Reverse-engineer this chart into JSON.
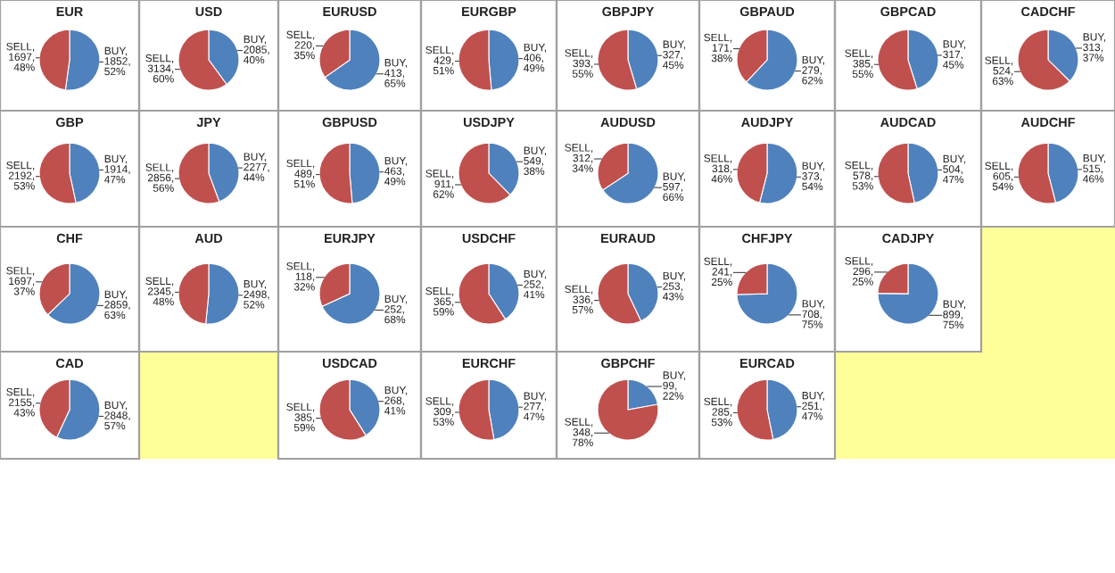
{
  "chart_data": [
    {
      "type": "pie",
      "title": "EUR",
      "values": [
        1852,
        1697
      ],
      "colors": [
        "#4f81bd",
        "#c0504d"
      ],
      "value_labels": [
        "BUY,\n1852,\n52%",
        "SELL,\n1697,\n48%"
      ]
    },
    {
      "type": "pie",
      "title": "USD",
      "values": [
        2085,
        3134
      ],
      "colors": [
        "#4f81bd",
        "#c0504d"
      ],
      "value_labels": [
        "BUY,\n2085,\n40%",
        "SELL,\n3134,\n60%"
      ]
    },
    {
      "type": "pie",
      "title": "EURUSD",
      "values": [
        413,
        220
      ],
      "colors": [
        "#4f81bd",
        "#c0504d"
      ],
      "value_labels": [
        "BUY,\n413,\n65%",
        "SELL,\n220,\n35%"
      ]
    },
    {
      "type": "pie",
      "title": "EURGBP",
      "values": [
        406,
        429
      ],
      "colors": [
        "#4f81bd",
        "#c0504d"
      ],
      "value_labels": [
        "BUY,\n406,\n49%",
        "SELL,\n429,\n51%"
      ]
    },
    {
      "type": "pie",
      "title": "GBPJPY",
      "values": [
        327,
        393
      ],
      "colors": [
        "#4f81bd",
        "#c0504d"
      ],
      "value_labels": [
        "BUY,\n327,\n45%",
        "SELL,\n393,\n55%"
      ]
    },
    {
      "type": "pie",
      "title": "GBPAUD",
      "values": [
        279,
        171
      ],
      "colors": [
        "#4f81bd",
        "#c0504d"
      ],
      "value_labels": [
        "BUY,\n279,\n62%",
        "SELL,\n171,\n38%"
      ]
    },
    {
      "type": "pie",
      "title": "GBPCAD",
      "values": [
        317,
        385
      ],
      "colors": [
        "#4f81bd",
        "#c0504d"
      ],
      "value_labels": [
        "BUY,\n317,\n45%",
        "SELL,\n385,\n55%"
      ]
    },
    {
      "type": "pie",
      "title": "CADCHF",
      "values": [
        313,
        524
      ],
      "colors": [
        "#4f81bd",
        "#c0504d"
      ],
      "value_labels": [
        "BUY,\n313,\n37%",
        "SELL,\n524,\n63%"
      ]
    },
    {
      "type": "pie",
      "title": "GBP",
      "values": [
        1914,
        2192
      ],
      "colors": [
        "#4f81bd",
        "#c0504d"
      ],
      "value_labels": [
        "BUY,\n1914,\n47%",
        "SELL,\n2192,\n53%"
      ]
    },
    {
      "type": "pie",
      "title": "JPY",
      "values": [
        2277,
        2856
      ],
      "colors": [
        "#4f81bd",
        "#c0504d"
      ],
      "value_labels": [
        "BUY,\n2277,\n44%",
        "SELL,\n2856,\n56%"
      ]
    },
    {
      "type": "pie",
      "title": "GBPUSD",
      "values": [
        463,
        489
      ],
      "colors": [
        "#4f81bd",
        "#c0504d"
      ],
      "value_labels": [
        "BUY,\n463,\n49%",
        "SELL,\n489,\n51%"
      ]
    },
    {
      "type": "pie",
      "title": "USDJPY",
      "values": [
        549,
        911
      ],
      "colors": [
        "#4f81bd",
        "#c0504d"
      ],
      "value_labels": [
        "BUY,\n549,\n38%",
        "SELL,\n911,\n62%"
      ]
    },
    {
      "type": "pie",
      "title": "AUDUSD",
      "values": [
        597,
        312
      ],
      "colors": [
        "#4f81bd",
        "#c0504d"
      ],
      "value_labels": [
        "BUY,\n597,\n66%",
        "SELL,\n312,\n34%"
      ]
    },
    {
      "type": "pie",
      "title": "AUDJPY",
      "values": [
        373,
        318
      ],
      "colors": [
        "#4f81bd",
        "#c0504d"
      ],
      "value_labels": [
        "BUY,\n373,\n54%",
        "SELL,\n318,\n46%"
      ]
    },
    {
      "type": "pie",
      "title": "AUDCAD",
      "values": [
        504,
        578
      ],
      "colors": [
        "#4f81bd",
        "#c0504d"
      ],
      "value_labels": [
        "BUY,\n504,\n47%",
        "SELL,\n578,\n53%"
      ]
    },
    {
      "type": "pie",
      "title": "AUDCHF",
      "values": [
        515,
        605
      ],
      "colors": [
        "#4f81bd",
        "#c0504d"
      ],
      "value_labels": [
        "BUY,\n515,\n46%",
        "SELL,\n605,\n54%"
      ]
    },
    {
      "type": "pie",
      "title": "CHF",
      "values": [
        2859,
        1697
      ],
      "colors": [
        "#4f81bd",
        "#c0504d"
      ],
      "value_labels": [
        "BUY,\n2859,\n63%",
        "SELL,\n1697,\n37%"
      ]
    },
    {
      "type": "pie",
      "title": "AUD",
      "values": [
        2498,
        2345
      ],
      "colors": [
        "#4f81bd",
        "#c0504d"
      ],
      "value_labels": [
        "BUY,\n2498,\n52%",
        "SELL,\n2345,\n48%"
      ]
    },
    {
      "type": "pie",
      "title": "EURJPY",
      "values": [
        252,
        118
      ],
      "colors": [
        "#4f81bd",
        "#c0504d"
      ],
      "value_labels": [
        "BUY,\n252,\n68%",
        "SELL,\n118,\n32%"
      ]
    },
    {
      "type": "pie",
      "title": "USDCHF",
      "values": [
        252,
        365
      ],
      "colors": [
        "#4f81bd",
        "#c0504d"
      ],
      "value_labels": [
        "BUY,\n252,\n41%",
        "SELL,\n365,\n59%"
      ]
    },
    {
      "type": "pie",
      "title": "EURAUD",
      "values": [
        253,
        336
      ],
      "colors": [
        "#4f81bd",
        "#c0504d"
      ],
      "value_labels": [
        "BUY,\n253,\n43%",
        "SELL,\n336,\n57%"
      ]
    },
    {
      "type": "pie",
      "title": "CHFJPY",
      "values": [
        708,
        241
      ],
      "colors": [
        "#4f81bd",
        "#c0504d"
      ],
      "value_labels": [
        "BUY,\n708,\n75%",
        "SELL,\n241,\n25%"
      ]
    },
    {
      "type": "pie",
      "title": "CADJPY",
      "values": [
        899,
        296
      ],
      "colors": [
        "#4f81bd",
        "#c0504d"
      ],
      "value_labels": [
        "BUY,\n899,\n75%",
        "SELL,\n296,\n25%"
      ]
    },
    {
      "type": "pie",
      "title": "CAD",
      "values": [
        2848,
        2155
      ],
      "colors": [
        "#4f81bd",
        "#c0504d"
      ],
      "value_labels": [
        "BUY,\n2848,\n57%",
        "SELL,\n2155,\n43%"
      ]
    },
    {
      "type": "pie",
      "title": "USDCAD",
      "values": [
        268,
        385
      ],
      "colors": [
        "#4f81bd",
        "#c0504d"
      ],
      "value_labels": [
        "BUY,\n268,\n41%",
        "SELL,\n385,\n59%"
      ]
    },
    {
      "type": "pie",
      "title": "EURCHF",
      "values": [
        277,
        309
      ],
      "colors": [
        "#4f81bd",
        "#c0504d"
      ],
      "value_labels": [
        "BUY,\n277,\n47%",
        "SELL,\n309,\n53%"
      ]
    },
    {
      "type": "pie",
      "title": "GBPCHF",
      "values": [
        99,
        348
      ],
      "colors": [
        "#4f81bd",
        "#c0504d"
      ],
      "value_labels": [
        "BUY,\n99,\n22%",
        "SELL,\n348,\n78%"
      ]
    },
    {
      "type": "pie",
      "title": "EURCAD",
      "values": [
        251,
        285
      ],
      "colors": [
        "#4f81bd",
        "#c0504d"
      ],
      "value_labels": [
        "BUY,\n251,\n47%",
        "SELL,\n285,\n53%"
      ]
    }
  ]
}
